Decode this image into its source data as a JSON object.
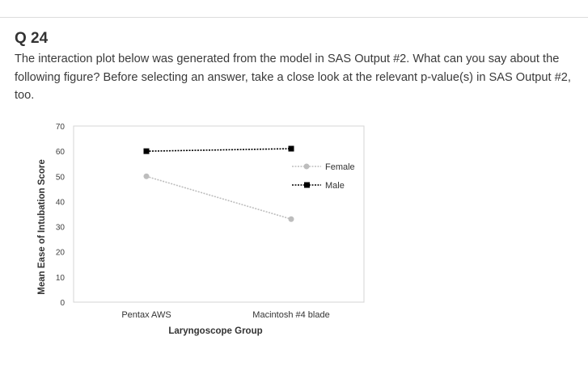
{
  "question": {
    "number": "Q 24",
    "text": "The interaction plot below was generated from the model in SAS Output #2. What can you say about the following figure? Before selecting an answer, take a close look at the relevant p-value(s) in SAS Output #2, too."
  },
  "chart_data": {
    "type": "line",
    "title": "",
    "xlabel": "Laryngoscope Group",
    "ylabel": "Mean Ease of Intubation Score",
    "categories": [
      "Pentax AWS",
      "Macintosh #4 blade"
    ],
    "ylim": [
      0,
      70
    ],
    "yticks": [
      0,
      10,
      20,
      30,
      40,
      50,
      60,
      70
    ],
    "grid": false,
    "legend_position": "right",
    "series": [
      {
        "name": "Female",
        "values": [
          50,
          33
        ],
        "color": "#bdbdbd",
        "marker": "circle"
      },
      {
        "name": "Male",
        "values": [
          60,
          61
        ],
        "color": "#000000",
        "marker": "square"
      }
    ]
  }
}
